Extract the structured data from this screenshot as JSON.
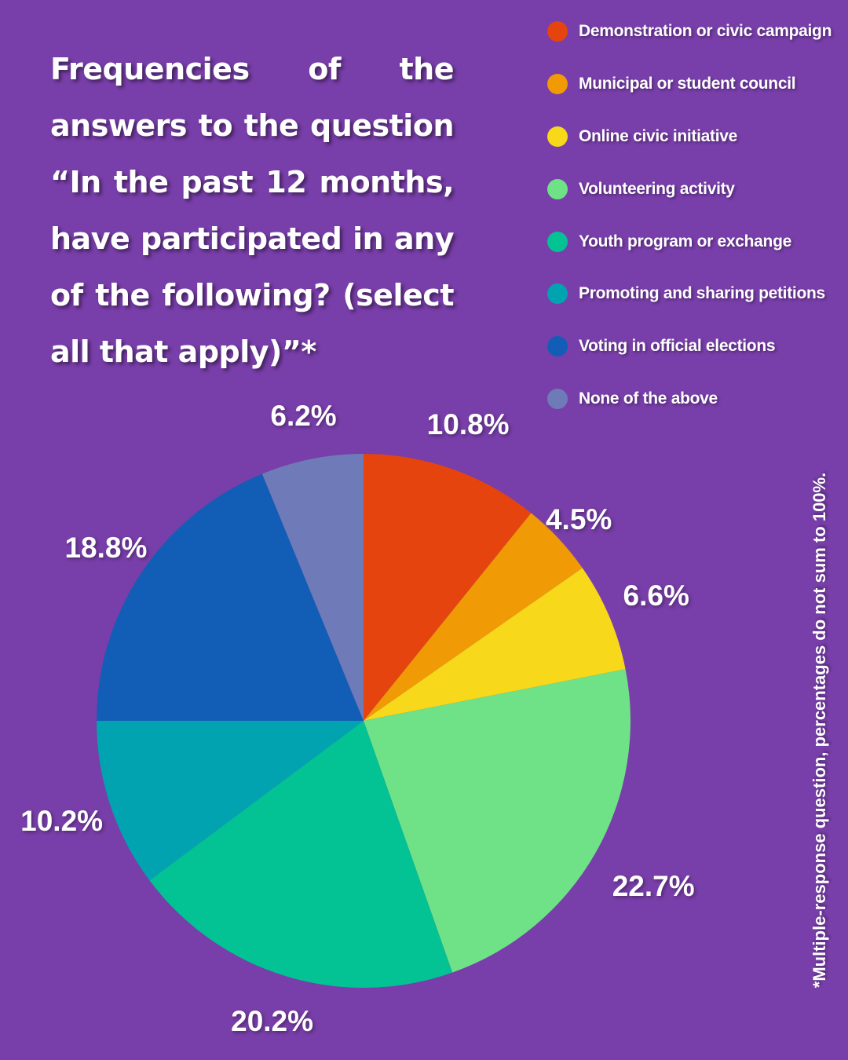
{
  "title": "Frequencies of the answers to the question “In the past 12 months, have participated in any of the following? (select all that apply)”*",
  "footnote": "*Multiple-response question, percentages do not sum to 100%.",
  "chart_data": {
    "type": "pie",
    "categories": [
      "Demonstration or civic campaign",
      "Municipal or student council",
      "Online civic initiative",
      "Volunteering activity",
      "Youth program or exchange",
      "Promoting and sharing petitions",
      "Voting in official elections",
      "None of the above"
    ],
    "values": [
      10.8,
      4.5,
      6.6,
      22.7,
      20.2,
      10.2,
      18.8,
      6.2
    ],
    "labels": [
      "10.8%",
      "4.5%",
      "6.6%",
      "22.7%",
      "20.2%",
      "10.2%",
      "18.8%",
      "6.2%"
    ],
    "colors": [
      "#e5440f",
      "#f09a05",
      "#f7d81a",
      "#6fe187",
      "#03c294",
      "#01a3b0",
      "#125eb6",
      "#6f7ab8"
    ],
    "legend_position": "top-right",
    "start_angle": "12 o'clock",
    "direction": "clockwise"
  }
}
